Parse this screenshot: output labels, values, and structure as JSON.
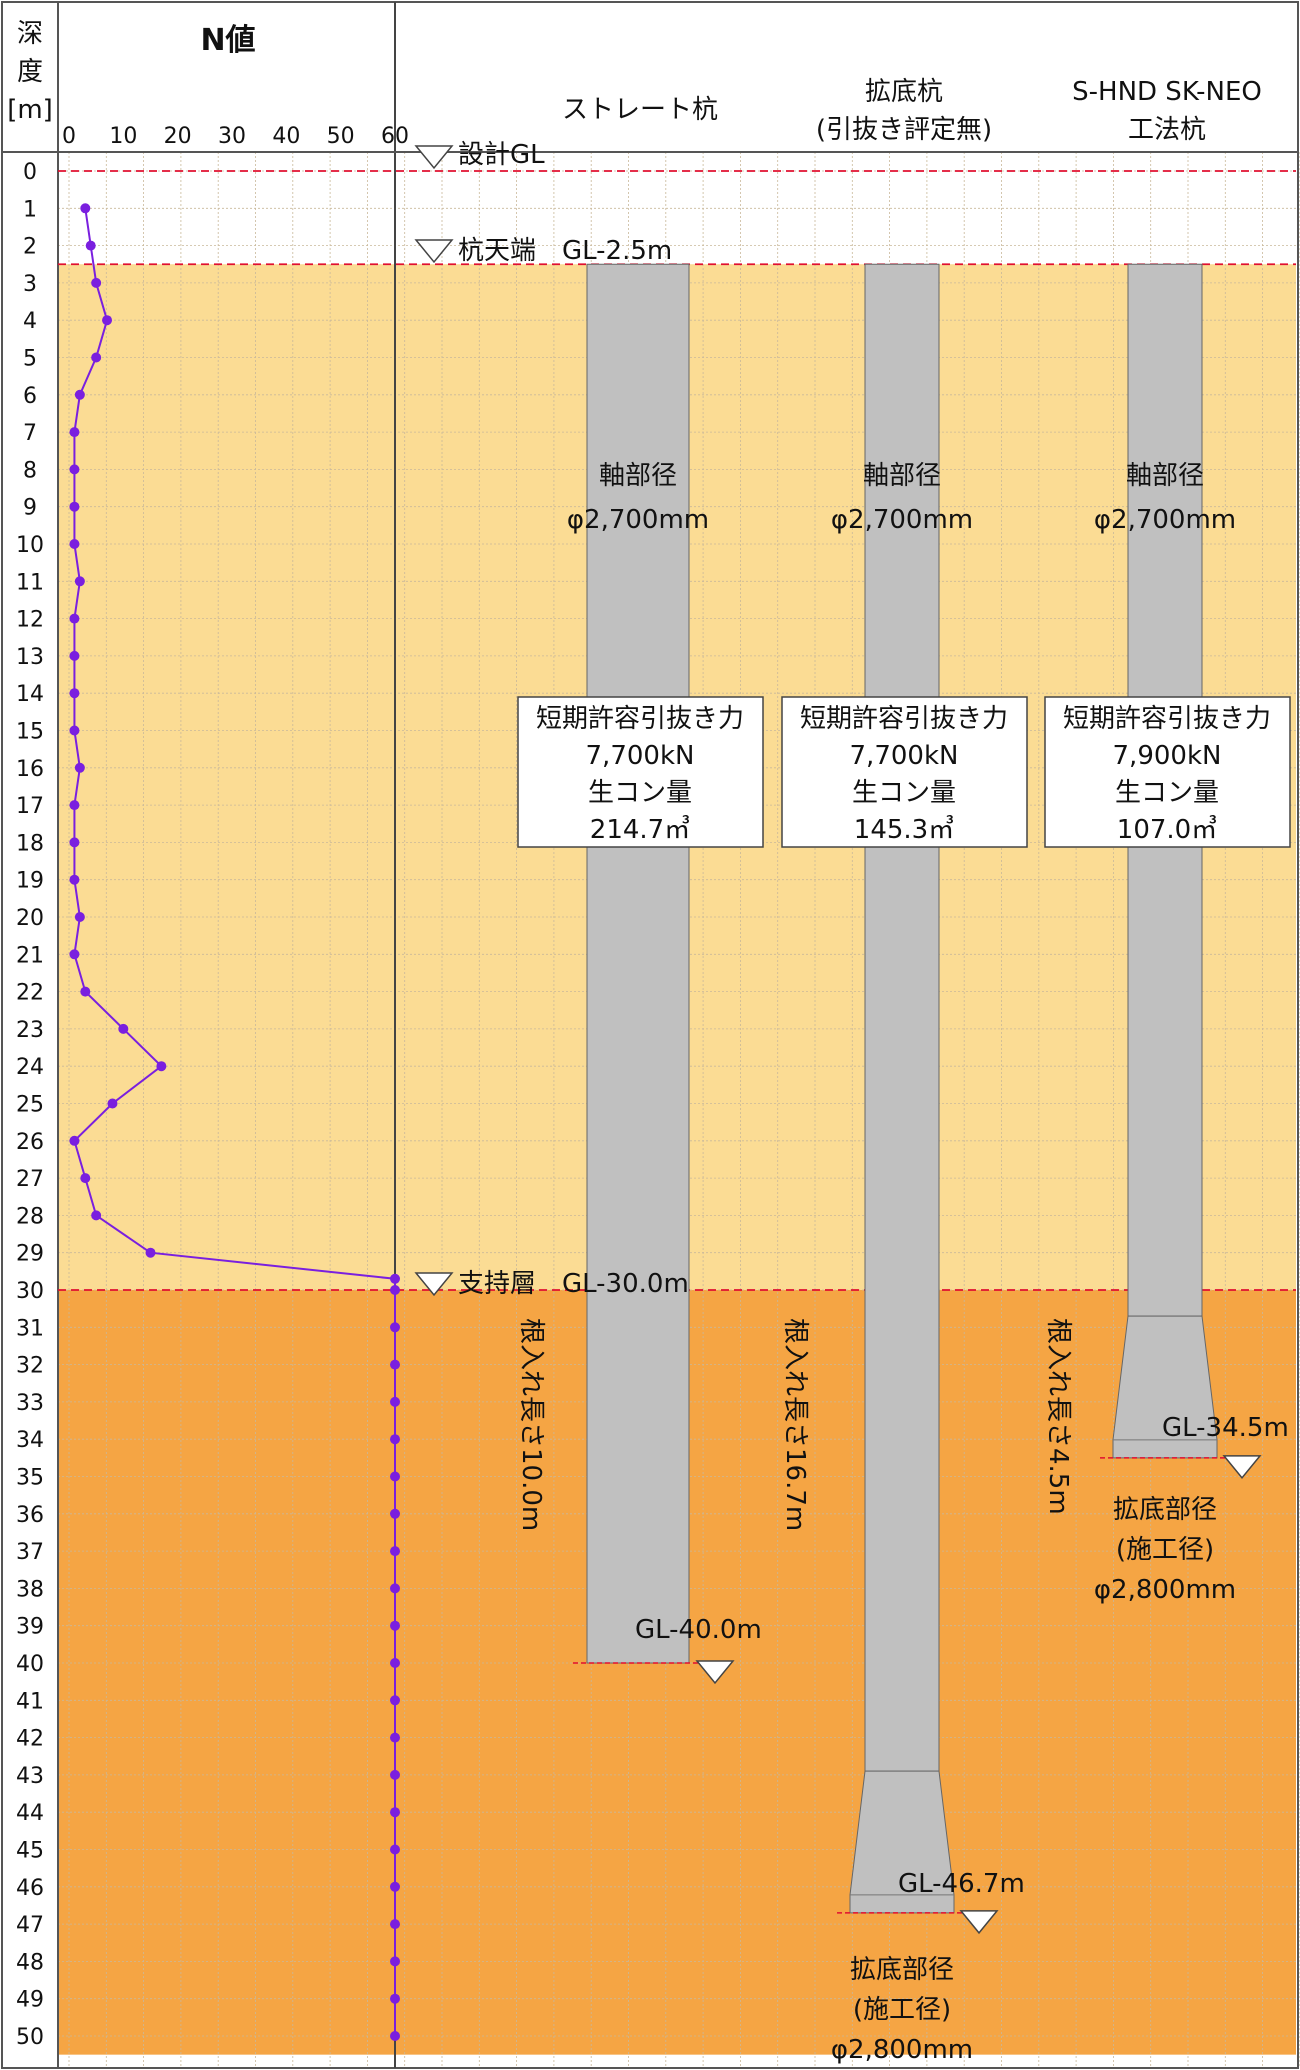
{
  "header": {
    "depth_title": [
      "深",
      "度",
      "[m]"
    ],
    "n_title": "N値",
    "n_ticks": [
      "0",
      "10",
      "20",
      "30",
      "40",
      "50",
      "60"
    ]
  },
  "pile_types": [
    {
      "title_lines": [
        "ストレート杭"
      ]
    },
    {
      "title_lines": [
        "拡底杭",
        "(引抜き評定無)"
      ]
    },
    {
      "title_lines": [
        "S-HND SK-NEO",
        "工法杭"
      ]
    }
  ],
  "levels": {
    "design_gl": {
      "label": "設計GL",
      "depth": 0
    },
    "pile_head": {
      "label": "杭天端　GL-2.5m",
      "depth": 2.5
    },
    "bearing": {
      "label": "支持層　GL-30.0m",
      "depth": 30.0
    }
  },
  "layers": [
    {
      "name": "upper",
      "from": 2.5,
      "to": 30.0,
      "color": "#fbdc94"
    },
    {
      "name": "bearing",
      "from": 30.0,
      "to": 50.5,
      "color": "#f5a544"
    }
  ],
  "colors": {
    "pile": "#c0c0c0",
    "n_line": "#7a1fdf",
    "dashed_line": "#e01030",
    "top_band": "#ffffff",
    "grid_light": "#d8c4a0"
  },
  "piles": [
    {
      "shaft": [
        "軸部径",
        "φ2,700mm"
      ],
      "box": [
        "短期許容引抜き力",
        "7,700kN",
        "生コン量",
        "214.7㎥"
      ],
      "embed": "根入れ長さ10.0m",
      "tip_label": "GL-40.0m",
      "tip_depth": 40.0,
      "bell": null
    },
    {
      "shaft": [
        "軸部径",
        "φ2,700mm"
      ],
      "box": [
        "短期許容引抜き力",
        "7,700kN",
        "生コン量",
        "145.3㎥"
      ],
      "embed": "根入れ長さ16.7m",
      "tip_label": "GL-46.7m",
      "tip_depth": 46.7,
      "bell": [
        "拡底部径",
        "(施工径)",
        "φ2,800mm"
      ]
    },
    {
      "shaft": [
        "軸部径",
        "φ2,700mm"
      ],
      "box": [
        "短期許容引抜き力",
        "7,900kN",
        "生コン量",
        "107.0㎥"
      ],
      "embed": "根入れ長さ4.5m",
      "tip_label": "GL-34.5m",
      "tip_depth": 34.5,
      "bell": [
        "拡底部径",
        "(施工径)",
        "φ2,800mm"
      ]
    }
  ],
  "chart_data": {
    "type": "line",
    "title": "N値",
    "xlabel": "N値",
    "ylabel": "深度[m]",
    "xlim": [
      0,
      60
    ],
    "ylim": [
      0,
      50
    ],
    "x_ticks": [
      0,
      10,
      20,
      30,
      40,
      50,
      60
    ],
    "y_ticks": [
      0,
      1,
      2,
      3,
      4,
      5,
      6,
      7,
      8,
      9,
      10,
      11,
      12,
      13,
      14,
      15,
      16,
      17,
      18,
      19,
      20,
      21,
      22,
      23,
      24,
      25,
      26,
      27,
      28,
      29,
      30,
      31,
      32,
      33,
      34,
      35,
      36,
      37,
      38,
      39,
      40,
      41,
      42,
      43,
      44,
      45,
      46,
      47,
      48,
      49,
      50
    ],
    "series": [
      {
        "depth": [
          1,
          2,
          3,
          4,
          5,
          6,
          7,
          8,
          9,
          10,
          11,
          12,
          13,
          14,
          15,
          16,
          17,
          18,
          19,
          20,
          21,
          22,
          23,
          24,
          25,
          26,
          27,
          28,
          29,
          29.7,
          30,
          31,
          32,
          33,
          34,
          35,
          36,
          37,
          38,
          39,
          40,
          41,
          42,
          43,
          44,
          45,
          46,
          47,
          48,
          49,
          50
        ],
        "n": [
          3,
          4,
          5,
          7,
          5,
          2,
          1,
          1,
          1,
          1,
          2,
          1,
          1,
          1,
          1,
          2,
          1,
          1,
          1,
          2,
          1,
          3,
          10,
          17,
          8,
          1,
          3,
          5,
          15,
          60,
          60,
          60,
          60,
          60,
          60,
          60,
          60,
          60,
          60,
          60,
          60,
          60,
          60,
          60,
          60,
          60,
          60,
          60,
          60,
          60,
          60
        ]
      }
    ],
    "grid": true
  }
}
